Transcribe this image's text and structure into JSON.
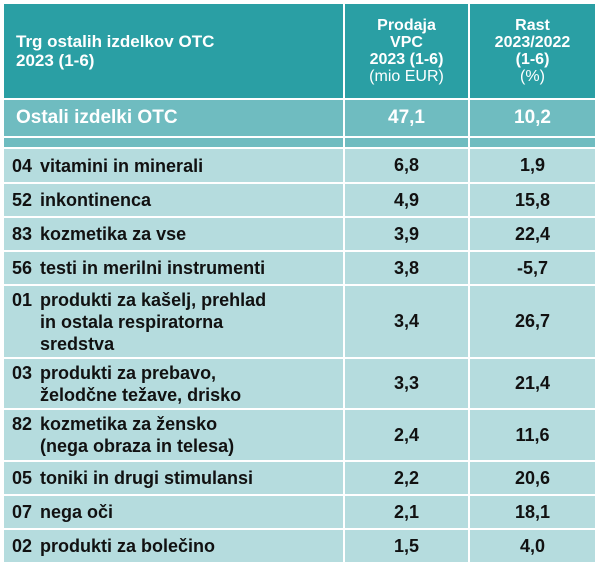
{
  "header": {
    "title_line1": "Trg ostalih izdelkov OTC",
    "title_line2": "2023 (1-6)",
    "col_sales": [
      "Prodaja",
      "VPC",
      "2023 (1-6)"
    ],
    "col_sales_unit": "(mio EUR)",
    "col_growth": [
      "Rast",
      "2023/2022",
      "(1-6)"
    ],
    "col_growth_unit": "(%)"
  },
  "total": {
    "label": "Ostali izdelki OTC",
    "sales": "47,1",
    "growth": "10,2"
  },
  "rows": [
    {
      "code": "04",
      "label": "vitamini in minerali",
      "sales": "6,8",
      "growth": "1,9"
    },
    {
      "code": "52",
      "label": "inkontinenca",
      "sales": "4,9",
      "growth": "15,8"
    },
    {
      "code": "83",
      "label": "kozmetika za vse",
      "sales": "3,9",
      "growth": "22,4"
    },
    {
      "code": "56",
      "label": "testi in merilni instrumenti",
      "sales": "3,8",
      "growth": "-5,7"
    },
    {
      "code": "01",
      "label": "produkti za kašelj, prehlad\nin ostala respiratorna\nsredstva",
      "sales": "3,4",
      "growth": "26,7"
    },
    {
      "code": "03",
      "label": "produkti za prebavo,\nželodčne težave, drisko",
      "sales": "3,3",
      "growth": "21,4"
    },
    {
      "code": "82",
      "label": "kozmetika za žensko\n(nega obraza in telesa)",
      "sales": "2,4",
      "growth": "11,6"
    },
    {
      "code": "05",
      "label": "toniki in drugi stimulansi",
      "sales": "2,2",
      "growth": "20,6"
    },
    {
      "code": "07",
      "label": "nega oči",
      "sales": "2,1",
      "growth": "18,1"
    },
    {
      "code": "02",
      "label": "produkti za bolečino",
      "sales": "1,5",
      "growth": "4,0"
    }
  ]
}
